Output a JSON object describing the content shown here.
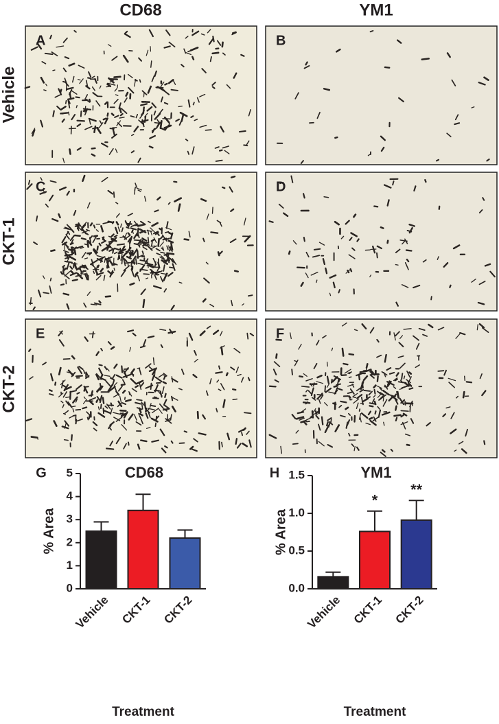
{
  "column_headers": [
    "CD68",
    "YM1"
  ],
  "row_labels": [
    "Vehicle",
    "CKT-1",
    "CKT-2"
  ],
  "panels": [
    "A",
    "B",
    "C",
    "D",
    "E",
    "F"
  ],
  "chart_data": [
    {
      "type": "bar",
      "panel_label": "G",
      "title": "CD68",
      "ylabel": "% Area",
      "xlabel": "Treatment",
      "categories": [
        "Vehicle",
        "CKT-1",
        "CKT-2"
      ],
      "values": [
        2.5,
        3.4,
        2.2
      ],
      "errors": [
        0.4,
        0.7,
        0.35
      ],
      "colors": [
        "#231f20",
        "#ec1c24",
        "#3b5ba9"
      ],
      "ylim": [
        0,
        5
      ],
      "yticks": [
        0,
        1,
        2,
        3,
        4,
        5
      ]
    },
    {
      "type": "bar",
      "panel_label": "H",
      "title": "YM1",
      "ylabel": "% Area",
      "xlabel": "Treatment",
      "categories": [
        "Vehicle",
        "CKT-1",
        "CKT-2"
      ],
      "values": [
        0.16,
        0.76,
        0.91
      ],
      "errors": [
        0.06,
        0.27,
        0.26
      ],
      "colors": [
        "#231f20",
        "#ec1c24",
        "#2b3990"
      ],
      "significance": [
        null,
        "*",
        "**"
      ],
      "ylim": [
        0,
        1.5
      ],
      "yticks": [
        {
          "value": 0,
          "label": "0.0"
        },
        0.5,
        {
          "value": 1,
          "label": "1.0"
        },
        1.5
      ]
    }
  ]
}
